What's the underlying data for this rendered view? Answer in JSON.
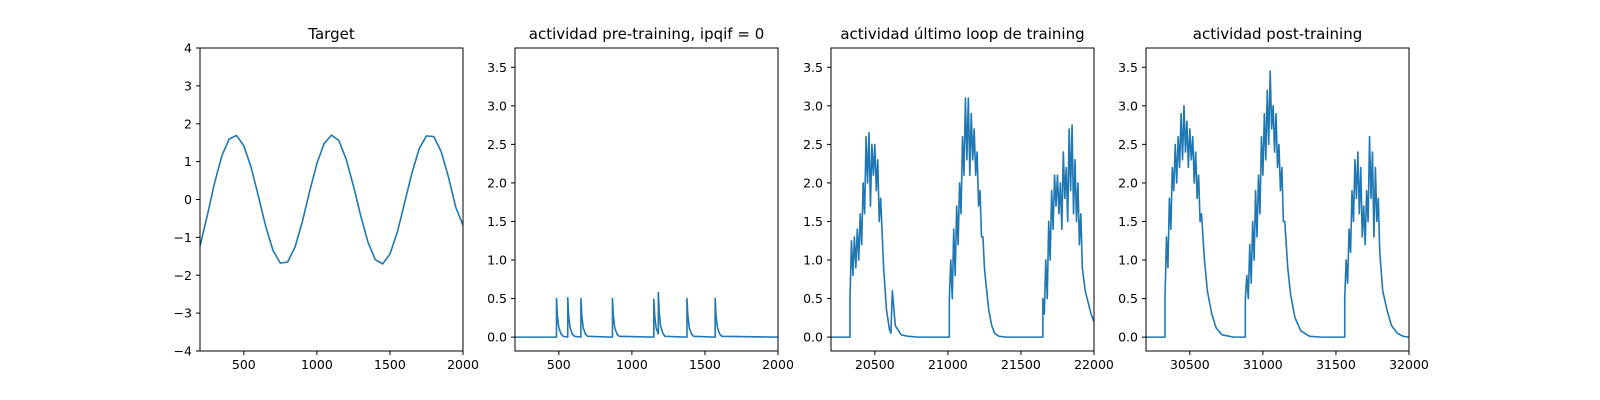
{
  "chart_data": [
    {
      "type": "line",
      "title": "Target",
      "xlabel": "",
      "ylabel": "",
      "xlim": [
        200,
        2000
      ],
      "ylim": [
        -4,
        4
      ],
      "xticks": [
        500,
        1000,
        1500,
        2000
      ],
      "yticks": [
        -4,
        -3,
        -2,
        -1,
        0,
        1,
        2,
        3,
        4
      ],
      "xtick_labels": [
        "500",
        "1000",
        "1500",
        "2000"
      ],
      "ytick_labels": [
        "−4",
        "−3",
        "−2",
        "−1",
        "0",
        "1",
        "2",
        "3",
        "4"
      ],
      "grid": false,
      "line_color": "#1f77b4",
      "series": [
        {
          "x": [
            200,
            250,
            300,
            350,
            400,
            450,
            500,
            550,
            600,
            650,
            700,
            750,
            800,
            850,
            900,
            950,
            1000,
            1050,
            1100,
            1150,
            1200,
            1250,
            1300,
            1350,
            1400,
            1450,
            1500,
            1550,
            1600,
            1650,
            1700,
            1750,
            1800,
            1850,
            1900,
            1950,
            2000
          ],
          "values": [
            -1.23,
            -0.42,
            0.44,
            1.16,
            1.6,
            1.69,
            1.42,
            0.85,
            0.08,
            -0.71,
            -1.35,
            -1.68,
            -1.65,
            -1.26,
            -0.59,
            0.21,
            0.95,
            1.48,
            1.7,
            1.56,
            1.07,
            0.36,
            -0.43,
            -1.13,
            -1.59,
            -1.7,
            -1.44,
            -0.87,
            -0.09,
            0.69,
            1.34,
            1.68,
            1.66,
            1.27,
            0.6,
            -0.2,
            -0.68
          ]
        }
      ]
    },
    {
      "type": "line",
      "title": "actividad pre-training, ipqif = 0",
      "xlabel": "",
      "ylabel": "",
      "xlim": [
        200,
        2000
      ],
      "ylim": [
        -0.18,
        3.75
      ],
      "xticks": [
        500,
        1000,
        1500,
        2000
      ],
      "yticks": [
        0,
        0.5,
        1,
        1.5,
        2,
        2.5,
        3,
        3.5
      ],
      "xtick_labels": [
        "500",
        "1000",
        "1500",
        "2000"
      ],
      "ytick_labels": [
        "0.0",
        "0.5",
        "1.0",
        "1.5",
        "2.0",
        "2.5",
        "3.0",
        "3.5"
      ],
      "grid": false,
      "line_color": "#1f77b4",
      "series": [
        {
          "x": [
            200,
            484,
            484,
            490,
            500,
            515,
            530,
            561,
            561,
            567,
            577,
            592,
            607,
            651,
            651,
            657,
            667,
            682,
            697,
            867,
            867,
            873,
            883,
            898,
            913,
            1150,
            1150,
            1156,
            1166,
            1181,
            1181,
            1187,
            1197,
            1212,
            1227,
            1377,
            1377,
            1383,
            1393,
            1408,
            1423,
            1570,
            1570,
            1576,
            1586,
            1601,
            1616,
            2000
          ],
          "values": [
            0,
            0,
            0.5,
            0.28,
            0.12,
            0.04,
            0.01,
            0,
            0.51,
            0.28,
            0.12,
            0.04,
            0.01,
            0,
            0.5,
            0.28,
            0.12,
            0.04,
            0.01,
            0,
            0.5,
            0.28,
            0.12,
            0.04,
            0.01,
            0,
            0.49,
            0.28,
            0.12,
            0.04,
            0.58,
            0.32,
            0.14,
            0.05,
            0.01,
            0,
            0.5,
            0.28,
            0.12,
            0.04,
            0.01,
            0,
            0.5,
            0.28,
            0.12,
            0.04,
            0.01,
            0
          ]
        }
      ]
    },
    {
      "type": "line",
      "title": "actividad último loop de training",
      "xlabel": "",
      "ylabel": "",
      "xlim": [
        20200,
        22000
      ],
      "ylim": [
        -0.18,
        3.75
      ],
      "xticks": [
        20500,
        21000,
        21500,
        22000
      ],
      "yticks": [
        0,
        0.5,
        1,
        1.5,
        2,
        2.5,
        3,
        3.5
      ],
      "xtick_labels": [
        "20500",
        "21000",
        "21500",
        "22000"
      ],
      "ytick_labels": [
        "0.0",
        "0.5",
        "1.0",
        "1.5",
        "2.0",
        "2.5",
        "3.0",
        "3.5"
      ],
      "grid": false,
      "line_color": "#1f77b4",
      "series": [
        {
          "x": [
            20200,
            20330,
            20330,
            20340,
            20350,
            20360,
            20370,
            20380,
            20390,
            20400,
            20410,
            20420,
            20430,
            20440,
            20450,
            20460,
            20470,
            20480,
            20490,
            20500,
            20510,
            20520,
            20530,
            20540,
            20560,
            20580,
            20600,
            20610,
            20620,
            20640,
            20680,
            20730,
            20800,
            21010,
            21010,
            21020,
            21030,
            21040,
            21050,
            21060,
            21070,
            21080,
            21090,
            21100,
            21110,
            21120,
            21130,
            21140,
            21150,
            21160,
            21170,
            21180,
            21190,
            21200,
            21210,
            21220,
            21230,
            21240,
            21250,
            21260,
            21280,
            21300,
            21320,
            21350,
            21400,
            21500,
            21650,
            21650,
            21660,
            21670,
            21680,
            21690,
            21700,
            21710,
            21720,
            21730,
            21740,
            21750,
            21760,
            21770,
            21780,
            21790,
            21800,
            21810,
            21820,
            21830,
            21840,
            21850,
            21860,
            21870,
            21880,
            21890,
            21900,
            21910,
            21920,
            21940,
            21960,
            21980,
            22000
          ],
          "values": [
            0,
            0,
            0.5,
            1.25,
            0.8,
            1.3,
            0.9,
            1.4,
            1.0,
            1.6,
            1.2,
            2.0,
            1.6,
            2.6,
            2.0,
            2.65,
            1.7,
            2.5,
            2.1,
            2.5,
            1.9,
            2.3,
            1.5,
            1.8,
            0.9,
            0.35,
            0.1,
            0.05,
            0.6,
            0.15,
            0.03,
            0.01,
            0,
            0,
            0.5,
            1.0,
            0.5,
            1.4,
            0.8,
            1.7,
            1.2,
            2.0,
            1.6,
            2.6,
            2.1,
            3.1,
            2.3,
            3.1,
            2.1,
            2.9,
            2.3,
            2.7,
            2.1,
            2.4,
            1.7,
            1.9,
            1.3,
            1.3,
            0.9,
            0.7,
            0.35,
            0.15,
            0.05,
            0.01,
            0,
            0,
            0,
            0.5,
            0.3,
            1.0,
            0.5,
            1.5,
            1.0,
            1.9,
            1.4,
            2.1,
            1.7,
            2.1,
            1.6,
            2.0,
            1.4,
            2.4,
            1.8,
            2.2,
            1.5,
            2.7,
            1.9,
            2.75,
            1.6,
            2.3,
            1.5,
            2.0,
            1.2,
            1.6,
            0.9,
            0.6,
            0.45,
            0.3,
            0.2
          ]
        }
      ]
    },
    {
      "type": "line",
      "title": "actividad post-training",
      "xlabel": "",
      "ylabel": "",
      "xlim": [
        30200,
        32000
      ],
      "ylim": [
        -0.18,
        3.75
      ],
      "xticks": [
        30500,
        31000,
        31500,
        32000
      ],
      "yticks": [
        0,
        0.5,
        1,
        1.5,
        2,
        2.5,
        3,
        3.5
      ],
      "xtick_labels": [
        "30500",
        "31000",
        "31500",
        "32000"
      ],
      "ytick_labels": [
        "0.0",
        "0.5",
        "1.0",
        "1.5",
        "2.0",
        "2.5",
        "3.0",
        "3.5"
      ],
      "grid": false,
      "line_color": "#1f77b4",
      "series": [
        {
          "x": [
            30200,
            30330,
            30330,
            30340,
            30350,
            30360,
            30370,
            30380,
            30390,
            30400,
            30410,
            30420,
            30430,
            30440,
            30450,
            30460,
            30470,
            30480,
            30490,
            30500,
            30510,
            30520,
            30530,
            30540,
            30550,
            30560,
            30570,
            30580,
            30600,
            30620,
            30650,
            30680,
            30720,
            30800,
            30880,
            30880,
            30890,
            30900,
            30910,
            30920,
            30930,
            30940,
            30950,
            30960,
            30970,
            30980,
            30990,
            31000,
            31010,
            31020,
            31030,
            31040,
            31050,
            31060,
            31070,
            31080,
            31090,
            31100,
            31110,
            31120,
            31130,
            31140,
            31150,
            31170,
            31190,
            31220,
            31260,
            31320,
            31400,
            31560,
            31560,
            31570,
            31580,
            31590,
            31600,
            31610,
            31620,
            31630,
            31640,
            31650,
            31660,
            31670,
            31680,
            31690,
            31700,
            31710,
            31720,
            31730,
            31740,
            31750,
            31760,
            31770,
            31780,
            31790,
            31800,
            31820,
            31850,
            31880,
            31920,
            31960,
            32000
          ],
          "values": [
            0,
            0,
            0.5,
            1.3,
            0.9,
            1.8,
            1.4,
            2.2,
            1.9,
            2.5,
            2.0,
            2.6,
            2.2,
            2.9,
            2.3,
            3.0,
            2.4,
            2.8,
            2.2,
            2.7,
            2.3,
            2.6,
            2.0,
            2.4,
            1.8,
            2.1,
            1.5,
            1.6,
            1.0,
            0.6,
            0.3,
            0.12,
            0.03,
            0,
            0,
            0.5,
            0.8,
            0.5,
            1.2,
            0.7,
            1.5,
            1.0,
            1.9,
            1.3,
            2.1,
            1.6,
            2.6,
            2.1,
            2.9,
            2.3,
            3.2,
            2.5,
            3.45,
            2.7,
            3.0,
            2.4,
            2.9,
            2.2,
            2.5,
            1.9,
            2.2,
            1.5,
            1.5,
            0.9,
            0.55,
            0.25,
            0.08,
            0.01,
            0,
            0,
            0.5,
            1.0,
            0.7,
            1.4,
            1.1,
            1.9,
            1.5,
            2.3,
            1.8,
            2.4,
            1.6,
            2.2,
            1.3,
            1.7,
            1.2,
            1.9,
            1.5,
            2.6,
            1.8,
            2.4,
            1.3,
            2.2,
            1.5,
            1.8,
            1.1,
            0.6,
            0.35,
            0.15,
            0.05,
            0.01,
            0
          ]
        }
      ]
    }
  ]
}
